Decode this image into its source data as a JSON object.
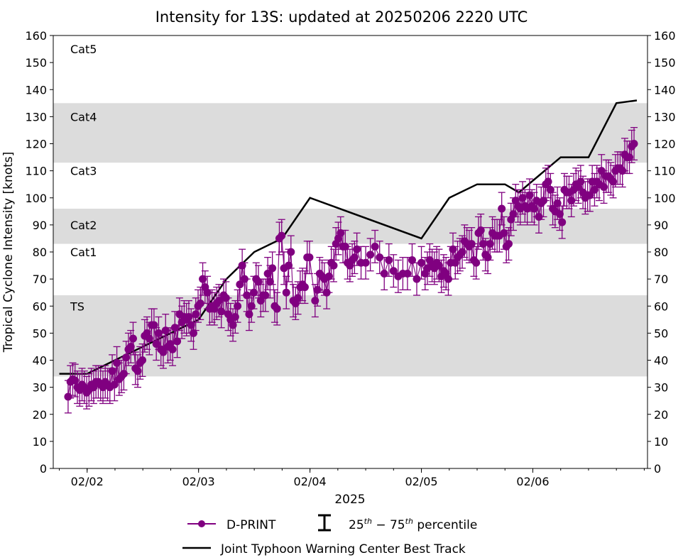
{
  "chart_data": {
    "type": "line",
    "title": "Intensity for 13S: updated at 20250206 2220 UTC",
    "xlabel": "2025",
    "ylabel": "Tropical Cyclone Intensity [knots]",
    "time_units": "hours since 2025-02-01 18:00 UTC",
    "xlim": [
      -1.3,
      126.7
    ],
    "ylim": [
      0,
      160
    ],
    "yticks": [
      0,
      10,
      20,
      30,
      40,
      50,
      60,
      70,
      80,
      90,
      100,
      110,
      120,
      130,
      140,
      150,
      160
    ],
    "xticks": [
      {
        "hour": 6,
        "label": "02/02"
      },
      {
        "hour": 30,
        "label": "02/03"
      },
      {
        "hour": 54,
        "label": "02/04"
      },
      {
        "hour": 78,
        "label": "02/05"
      },
      {
        "hour": 102,
        "label": "02/06"
      }
    ],
    "minor_tick_interval_hours": 6,
    "category_bands": [
      {
        "label": "TS",
        "min": 34,
        "max": 64,
        "shaded": true,
        "label_value": 60
      },
      {
        "label": "Cat1",
        "min": 64,
        "max": 83,
        "shaded": false,
        "label_value": 80
      },
      {
        "label": "Cat2",
        "min": 83,
        "max": 96,
        "shaded": true,
        "label_value": 90
      },
      {
        "label": "Cat3",
        "min": 96,
        "max": 113,
        "shaded": false,
        "label_value": 110
      },
      {
        "label": "Cat4",
        "min": 113,
        "max": 135,
        "shaded": true,
        "label_value": 130
      },
      {
        "label": "Cat5",
        "min": 135,
        "max": 160,
        "shaded": false,
        "label_value": 155
      }
    ],
    "series": [
      {
        "name": "Joint Typhoon Warning Center Best Track",
        "color": "#000000",
        "points": [
          [
            0,
            35
          ],
          [
            6,
            35
          ],
          [
            12,
            40
          ],
          [
            18,
            45
          ],
          [
            24,
            50
          ],
          [
            30,
            55
          ],
          [
            36,
            70
          ],
          [
            42,
            80
          ],
          [
            48,
            85
          ],
          [
            54,
            100
          ],
          [
            78,
            85
          ],
          [
            84,
            100
          ],
          [
            90,
            105
          ],
          [
            96,
            105
          ],
          [
            99,
            102
          ],
          [
            108,
            115
          ],
          [
            114,
            115
          ],
          [
            120,
            135
          ],
          [
            124.4,
            136
          ]
        ]
      },
      {
        "name": "D-PRINT",
        "color": "#800080",
        "iqr_offsets": [
          -6,
          6
        ],
        "segments": [
          {
            "start_hour": 1.9,
            "step_hours": 0.5,
            "values": [
              26.5,
              32,
              33,
              32.5,
              30,
              29,
              31,
              30,
              28,
              29,
              31,
              30,
              32,
              32,
              31,
              30,
              32,
              31,
              30,
              36,
              31,
              39,
              33,
              34,
              35,
              41,
              44,
              45,
              48,
              37,
              36,
              39,
              40,
              49,
              50,
              48,
              53,
              53,
              46,
              50,
              44,
              43,
              51,
              45,
              46,
              44,
              52,
              47,
              57,
              54,
              56,
              55,
              56,
              53,
              50,
              57,
              60,
              61,
              70,
              67,
              65,
              59,
              60,
              59,
              61,
              62,
              58,
              64,
              63,
              57,
              55,
              53,
              56,
              60,
              68,
              75,
              70,
              64,
              57,
              60,
              65,
              70,
              69,
              62,
              64,
              64,
              72,
              69,
              74,
              60,
              59,
              85,
              86,
              74,
              65,
              75,
              80,
              62,
              61,
              63,
              67,
              68,
              67,
              78,
              78
            ]
          },
          {
            "start_hour": 55.1,
            "step_hours": 0.5,
            "values": [
              62,
              66,
              72,
              71,
              70,
              65,
              71,
              76,
              75,
              83,
              85,
              87,
              82,
              82,
              76,
              75,
              77,
              78,
              81
            ]
          },
          {
            "start_hour": 65,
            "step_hours": 1,
            "values": [
              76,
              76,
              79,
              82,
              78,
              72,
              77,
              73,
              71,
              72,
              72,
              77,
              70,
              76
            ]
          },
          {
            "start_hour": 78.8,
            "step_hours": 0.5,
            "values": [
              72,
              74,
              77,
              75,
              74,
              76,
              75,
              71,
              73,
              72,
              70,
              76,
              81,
              76,
              78,
              79,
              80,
              84,
              83,
              82,
              83,
              77,
              76,
              87,
              88,
              83,
              79,
              78,
              83,
              87,
              86,
              86,
              86,
              96,
              87,
              82,
              83,
              92,
              94,
              99,
              97,
              96,
              100,
              97,
              96,
              101,
              97,
              96,
              99,
              93,
              98,
              99,
              105,
              106,
              103,
              96,
              95,
              98,
              94,
              91,
              103,
              102,
              102,
              99,
              103,
              105,
              104,
              106,
              102,
              100,
              101,
              101,
              106,
              103,
              106,
              105,
              110,
              104,
              108,
              108,
              107,
              106,
              110,
              111,
              111,
              110,
              116,
              115,
              115,
              119,
              120
            ]
          }
        ]
      }
    ],
    "legend": {
      "placement": "bottom",
      "dprint_label": "D-PRINT",
      "percentile_label_prefix": "25",
      "percentile_label_mid": " − 75",
      "percentile_sup": "th",
      "percentile_label_suffix": " percentile",
      "best_track_label": "Joint Typhoon Warning Center Best Track"
    }
  }
}
